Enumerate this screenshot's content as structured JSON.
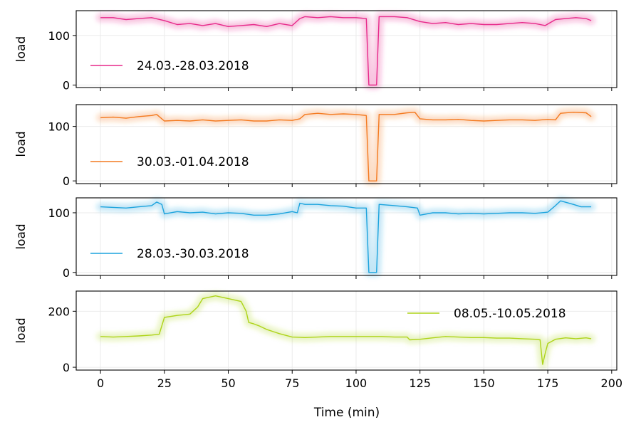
{
  "chart_data": {
    "type": "line",
    "xlabel": "Time (min)",
    "xlim": [
      -9.5,
      202
    ],
    "x_ticks": [
      0,
      25,
      50,
      75,
      100,
      125,
      150,
      175,
      200
    ],
    "panels": [
      {
        "ylabel": "load",
        "color": "#e7298a",
        "legend": "24.03.-28.03.2018",
        "legend_position": "lower-left",
        "ylim": [
          -5,
          150
        ],
        "y_ticks": [
          0,
          100
        ],
        "points": [
          [
            0,
            136
          ],
          [
            5,
            136
          ],
          [
            10,
            132
          ],
          [
            15,
            134
          ],
          [
            20,
            136
          ],
          [
            25,
            130
          ],
          [
            30,
            122
          ],
          [
            35,
            124
          ],
          [
            40,
            120
          ],
          [
            45,
            124
          ],
          [
            50,
            118
          ],
          [
            55,
            120
          ],
          [
            60,
            122
          ],
          [
            65,
            118
          ],
          [
            70,
            124
          ],
          [
            75,
            120
          ],
          [
            78,
            134
          ],
          [
            80,
            138
          ],
          [
            85,
            136
          ],
          [
            90,
            138
          ],
          [
            95,
            136
          ],
          [
            100,
            136
          ],
          [
            104,
            134
          ],
          [
            105,
            0
          ],
          [
            108,
            0
          ],
          [
            109,
            138
          ],
          [
            115,
            138
          ],
          [
            120,
            136
          ],
          [
            125,
            128
          ],
          [
            130,
            124
          ],
          [
            135,
            126
          ],
          [
            140,
            122
          ],
          [
            145,
            124
          ],
          [
            150,
            122
          ],
          [
            155,
            122
          ],
          [
            160,
            124
          ],
          [
            165,
            126
          ],
          [
            170,
            124
          ],
          [
            174,
            120
          ],
          [
            178,
            132
          ],
          [
            182,
            134
          ],
          [
            186,
            136
          ],
          [
            190,
            134
          ],
          [
            192,
            130
          ]
        ]
      },
      {
        "ylabel": "load",
        "color": "#f47a20",
        "legend": "30.03.-01.04.2018",
        "legend_position": "lower-left",
        "ylim": [
          -5,
          140
        ],
        "y_ticks": [
          0,
          100
        ],
        "points": [
          [
            0,
            116
          ],
          [
            5,
            117
          ],
          [
            10,
            115
          ],
          [
            15,
            118
          ],
          [
            20,
            120
          ],
          [
            22,
            122
          ],
          [
            25,
            110
          ],
          [
            30,
            111
          ],
          [
            35,
            110
          ],
          [
            40,
            112
          ],
          [
            45,
            110
          ],
          [
            50,
            111
          ],
          [
            55,
            112
          ],
          [
            60,
            110
          ],
          [
            65,
            110
          ],
          [
            70,
            112
          ],
          [
            75,
            111
          ],
          [
            78,
            114
          ],
          [
            80,
            122
          ],
          [
            85,
            124
          ],
          [
            90,
            122
          ],
          [
            95,
            123
          ],
          [
            100,
            122
          ],
          [
            104,
            120
          ],
          [
            105,
            0
          ],
          [
            108,
            0
          ],
          [
            109,
            122
          ],
          [
            115,
            122
          ],
          [
            120,
            125
          ],
          [
            123,
            126
          ],
          [
            125,
            114
          ],
          [
            130,
            112
          ],
          [
            135,
            112
          ],
          [
            140,
            113
          ],
          [
            145,
            111
          ],
          [
            150,
            110
          ],
          [
            155,
            111
          ],
          [
            160,
            112
          ],
          [
            165,
            112
          ],
          [
            170,
            111
          ],
          [
            175,
            113
          ],
          [
            178,
            112
          ],
          [
            180,
            124
          ],
          [
            185,
            126
          ],
          [
            190,
            125
          ],
          [
            192,
            118
          ]
        ]
      },
      {
        "ylabel": "load",
        "color": "#1ba3dd",
        "legend": "28.03.-30.03.2018",
        "legend_position": "lower-left",
        "ylim": [
          -5,
          125
        ],
        "y_ticks": [
          0,
          100
        ],
        "points": [
          [
            0,
            110
          ],
          [
            5,
            109
          ],
          [
            10,
            108
          ],
          [
            15,
            110
          ],
          [
            20,
            112
          ],
          [
            22,
            118
          ],
          [
            24,
            114
          ],
          [
            25,
            98
          ],
          [
            30,
            102
          ],
          [
            35,
            100
          ],
          [
            40,
            101
          ],
          [
            45,
            98
          ],
          [
            50,
            100
          ],
          [
            55,
            99
          ],
          [
            60,
            96
          ],
          [
            65,
            96
          ],
          [
            70,
            98
          ],
          [
            75,
            102
          ],
          [
            77,
            100
          ],
          [
            78,
            116
          ],
          [
            80,
            114
          ],
          [
            85,
            114
          ],
          [
            90,
            112
          ],
          [
            95,
            111
          ],
          [
            100,
            108
          ],
          [
            104,
            108
          ],
          [
            105,
            0
          ],
          [
            108,
            0
          ],
          [
            109,
            114
          ],
          [
            115,
            112
          ],
          [
            120,
            110
          ],
          [
            124,
            108
          ],
          [
            125,
            96
          ],
          [
            130,
            100
          ],
          [
            135,
            100
          ],
          [
            140,
            98
          ],
          [
            145,
            99
          ],
          [
            150,
            98
          ],
          [
            155,
            99
          ],
          [
            160,
            100
          ],
          [
            165,
            100
          ],
          [
            170,
            99
          ],
          [
            175,
            101
          ],
          [
            178,
            112
          ],
          [
            180,
            120
          ],
          [
            185,
            114
          ],
          [
            188,
            110
          ],
          [
            192,
            110
          ]
        ]
      },
      {
        "ylabel": "load",
        "color": "#aed419",
        "legend": "08.05.-10.05.2018",
        "legend_position": "upper-right",
        "ylim": [
          -10,
          272
        ],
        "y_ticks": [
          0,
          200
        ],
        "points": [
          [
            0,
            110
          ],
          [
            5,
            108
          ],
          [
            10,
            110
          ],
          [
            15,
            112
          ],
          [
            20,
            115
          ],
          [
            23,
            118
          ],
          [
            25,
            178
          ],
          [
            30,
            185
          ],
          [
            35,
            190
          ],
          [
            38,
            215
          ],
          [
            40,
            245
          ],
          [
            45,
            255
          ],
          [
            50,
            245
          ],
          [
            55,
            235
          ],
          [
            57,
            200
          ],
          [
            58,
            160
          ],
          [
            60,
            155
          ],
          [
            62,
            148
          ],
          [
            65,
            135
          ],
          [
            70,
            120
          ],
          [
            75,
            108
          ],
          [
            80,
            106
          ],
          [
            85,
            108
          ],
          [
            90,
            110
          ],
          [
            95,
            110
          ],
          [
            100,
            110
          ],
          [
            105,
            110
          ],
          [
            110,
            110
          ],
          [
            115,
            108
          ],
          [
            120,
            108
          ],
          [
            121,
            98
          ],
          [
            125,
            100
          ],
          [
            130,
            105
          ],
          [
            135,
            110
          ],
          [
            140,
            108
          ],
          [
            145,
            106
          ],
          [
            150,
            106
          ],
          [
            155,
            104
          ],
          [
            160,
            104
          ],
          [
            165,
            102
          ],
          [
            170,
            100
          ],
          [
            172,
            98
          ],
          [
            173,
            10
          ],
          [
            174,
            50
          ],
          [
            175,
            85
          ],
          [
            178,
            100
          ],
          [
            182,
            105
          ],
          [
            186,
            102
          ],
          [
            190,
            105
          ],
          [
            192,
            102
          ]
        ]
      }
    ]
  }
}
